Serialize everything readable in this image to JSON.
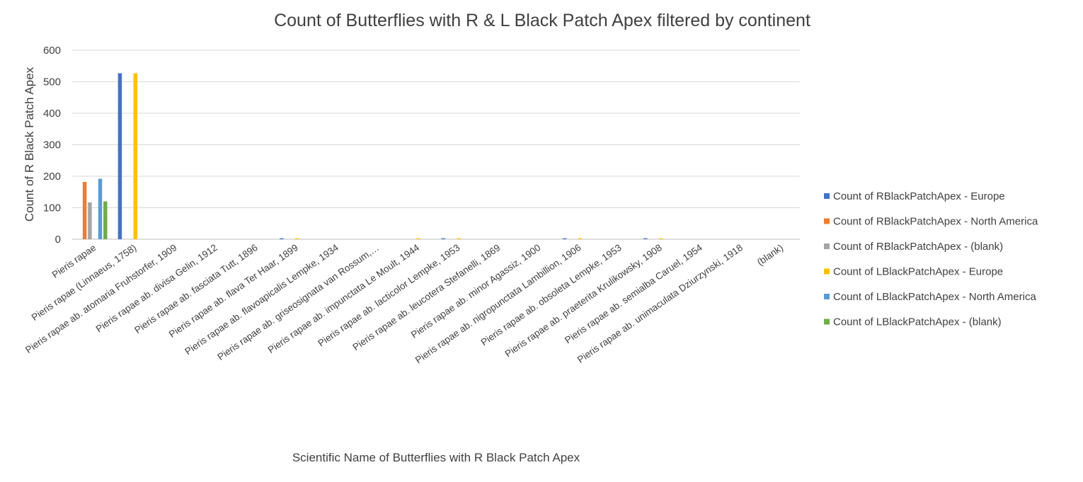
{
  "chart_data": {
    "type": "bar",
    "title": "Count of Butterflies with R & L Black Patch Apex filtered by continent",
    "xlabel": "Scientific Name of Butterflies with R Black Patch Apex",
    "ylabel": "Count of R Black Patch Apex",
    "ylim": [
      0,
      600
    ],
    "yticks": [
      0,
      100,
      200,
      300,
      400,
      500,
      600
    ],
    "grid": true,
    "legend_position": "right",
    "categories": [
      "Pieris rapae",
      "Pieris rapae (Linnaeus, 1758)",
      "Pieris rapae ab. atomaria Fruhstorfer, 1909",
      "Pieris rapae ab. divisa Gelin, 1912",
      "Pieris rapae ab. fasciata Tutt, 1896",
      "Pieris rapae ab. flava Ter Haar, 1899",
      "Pieris rapae ab. flavoapicalis Lempke, 1934",
      "Pieris rapae ab. griseosignata van Rossum,…",
      "Pieris rapae ab. impunctata Le Moult, 1944",
      "Pieris rapae ab. lacticolor Lempke, 1953",
      "Pieris rapae ab. leucotera Stefanelli, 1869",
      "Pieris rapae ab. minor Agassiz, 1900",
      "Pieris rapae ab. nigropunctata Lambillion, 1906",
      "Pieris rapae ab. obsoleta Lempke, 1953",
      "Pieris rapae ab. praeterita Krulikowsky, 1908",
      "Pieris rapae ab. semialba Caruel, 1954",
      "Pieris rapae ab. unimaculata Dziurzynski, 1918",
      "(blank)"
    ],
    "series": [
      {
        "name": "Count of RBlackPatchApex - Europe",
        "color": "#4472c4",
        "values": [
          0,
          527,
          0,
          0,
          0,
          3,
          0,
          0,
          0,
          3,
          0,
          0,
          3,
          0,
          3,
          0,
          0,
          0
        ]
      },
      {
        "name": "Count of RBlackPatchApex - North America",
        "color": "#ed7d31",
        "values": [
          182,
          0,
          0,
          0,
          0,
          0,
          0,
          0,
          0,
          0,
          0,
          0,
          0,
          0,
          0,
          0,
          0,
          0
        ]
      },
      {
        "name": "Count of RBlackPatchApex - (blank)",
        "color": "#a5a5a5",
        "values": [
          117,
          0,
          0,
          0,
          0,
          0,
          0,
          0,
          0,
          0,
          0,
          0,
          0,
          0,
          0,
          0,
          0,
          0
        ]
      },
      {
        "name": "Count of LBlackPatchApex - Europe",
        "color": "#ffc000",
        "values": [
          0,
          527,
          0,
          0,
          0,
          3,
          0,
          0,
          3,
          3,
          0,
          0,
          3,
          0,
          3,
          0,
          0,
          0
        ]
      },
      {
        "name": "Count of LBlackPatchApex - North America",
        "color": "#5b9bd5",
        "values": [
          192,
          0,
          0,
          0,
          0,
          0,
          0,
          0,
          0,
          0,
          0,
          0,
          0,
          0,
          0,
          0,
          0,
          0
        ]
      },
      {
        "name": "Count of LBlackPatchApex - (blank)",
        "color": "#70ad47",
        "values": [
          120,
          0,
          0,
          0,
          0,
          0,
          0,
          0,
          0,
          0,
          0,
          0,
          0,
          0,
          0,
          0,
          0,
          0
        ]
      }
    ]
  }
}
